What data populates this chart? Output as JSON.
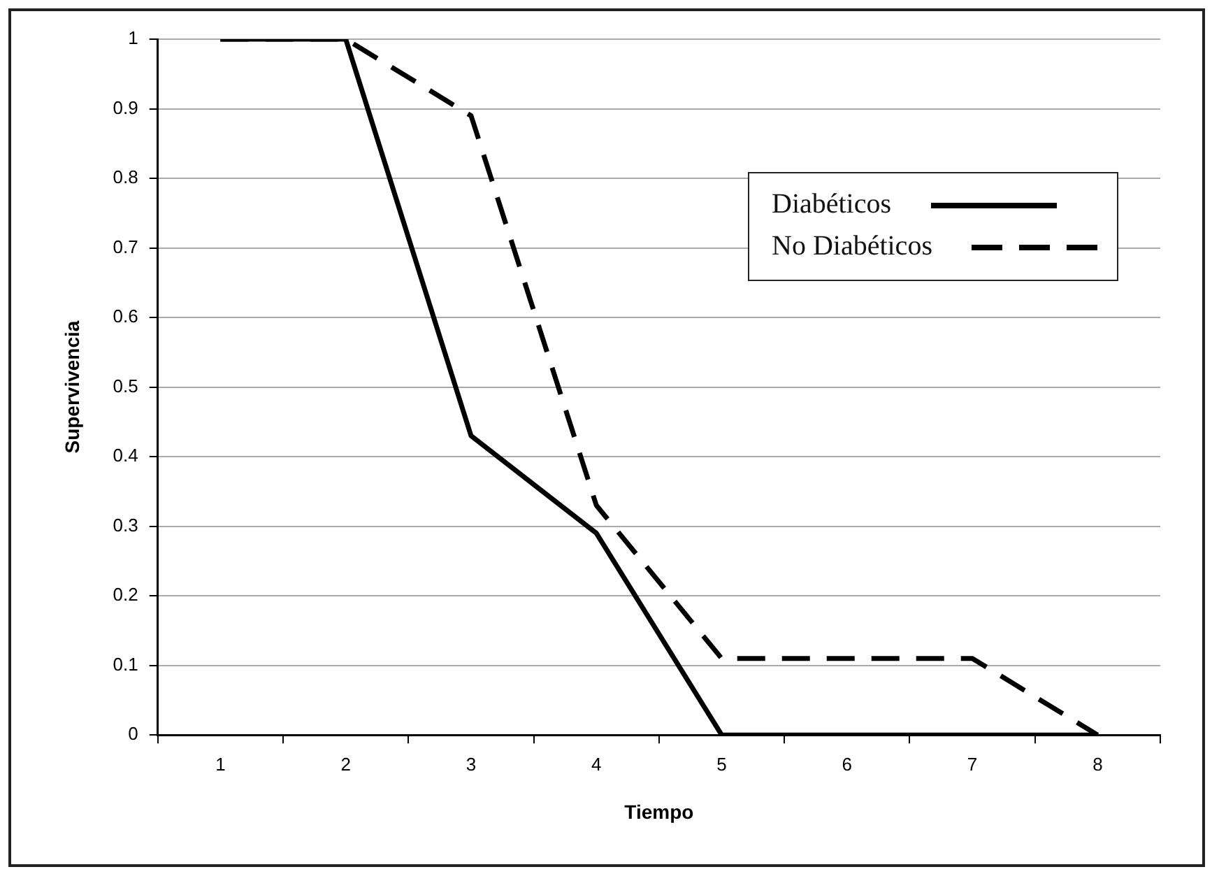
{
  "chart_data": {
    "type": "line",
    "xlabel": "Tiempo",
    "ylabel": "Supervivencia",
    "categories": [
      "1",
      "2",
      "3",
      "4",
      "5",
      "6",
      "7",
      "8"
    ],
    "series": [
      {
        "name": "Diabéticos",
        "color": "#000000",
        "line_style": "solid",
        "values": [
          1,
          1,
          0.43,
          0.29,
          0,
          0,
          0,
          0
        ]
      },
      {
        "name": "No Diabéticos",
        "color": "#000000",
        "line_style": "dashed",
        "values": [
          1,
          1,
          0.89,
          0.33,
          0.11,
          0.11,
          0.11,
          0
        ]
      }
    ],
    "ylim": [
      0,
      1
    ],
    "yticks": [
      0,
      0.1,
      0.2,
      0.3,
      0.4,
      0.5,
      0.6,
      0.7,
      0.8,
      0.9,
      1
    ],
    "grid": "y",
    "legend": "right",
    "marker": "none"
  }
}
